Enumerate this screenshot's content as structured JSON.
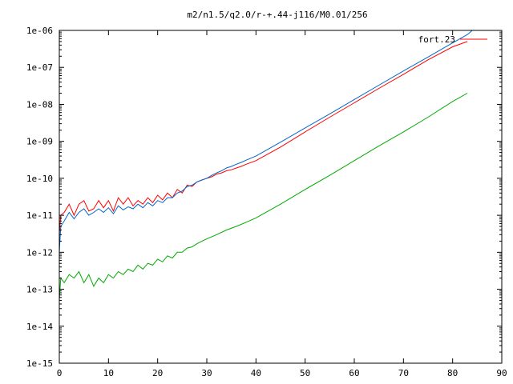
{
  "chart_data": {
    "type": "line",
    "title": "m2/n1.5/q2.0/r-+.44-j116/M0.01/256",
    "xlabel": "",
    "ylabel": "",
    "xlim": [
      0,
      90
    ],
    "ylim": [
      1e-15,
      1e-06
    ],
    "yscale": "log",
    "grid": false,
    "legend_position": "top-right",
    "x_ticks": [
      0,
      10,
      20,
      30,
      40,
      50,
      60,
      70,
      80,
      90
    ],
    "x_tick_labels": [
      "0",
      "10",
      "20",
      "30",
      "40",
      "50",
      "60",
      "70",
      "80",
      "90"
    ],
    "y_ticks": [
      1e-15,
      1e-14,
      1e-13,
      1e-12,
      1e-11,
      1e-10,
      1e-09,
      1e-08,
      1e-07,
      1e-06
    ],
    "y_tick_labels": [
      "1e-15",
      "1e-14",
      "1e-13",
      "1e-12",
      "1e-11",
      "1e-10",
      "1e-09",
      "1e-08",
      "1e-07",
      "1e-06"
    ],
    "series": [
      {
        "name": "fort.23",
        "color": "#ff0000",
        "x": [
          0,
          0.3,
          1,
          2,
          3,
          4,
          5,
          6,
          7,
          8,
          9,
          10,
          11,
          12,
          13,
          14,
          15,
          16,
          17,
          18,
          19,
          20,
          21,
          22,
          23,
          24,
          25,
          26,
          27,
          28,
          29,
          30,
          31,
          32,
          33,
          34,
          35,
          36,
          37,
          38,
          40,
          45,
          50,
          55,
          60,
          65,
          70,
          75,
          80,
          83
        ],
        "y": [
          3e-12,
          1e-11,
          1.2e-11,
          2e-11,
          1e-11,
          2e-11,
          2.5e-11,
          1.3e-11,
          1.5e-11,
          2.5e-11,
          1.6e-11,
          2.5e-11,
          1.3e-11,
          3e-11,
          2e-11,
          3e-11,
          1.8e-11,
          2.5e-11,
          2e-11,
          3e-11,
          2.2e-11,
          3.5e-11,
          2.6e-11,
          4e-11,
          3e-11,
          5e-11,
          4e-11,
          6.5e-11,
          6e-11,
          8e-11,
          9e-11,
          1e-10,
          1.1e-10,
          1.3e-10,
          1.4e-10,
          1.6e-10,
          1.7e-10,
          1.9e-10,
          2.1e-10,
          2.4e-10,
          3e-10,
          7e-10,
          1.8e-09,
          4.5e-09,
          1.1e-08,
          2.7e-08,
          6.5e-08,
          1.6e-07,
          3.6e-07,
          5e-07
        ]
      },
      {
        "name": "",
        "color": "#0066cc",
        "x": [
          0,
          0.3,
          1,
          2,
          3,
          4,
          5,
          6,
          7,
          8,
          9,
          10,
          11,
          12,
          13,
          14,
          15,
          16,
          17,
          18,
          19,
          20,
          21,
          22,
          23,
          24,
          25,
          26,
          27,
          28,
          29,
          30,
          31,
          32,
          33,
          34,
          35,
          36,
          37,
          38,
          40,
          45,
          50,
          55,
          60,
          65,
          70,
          75,
          80,
          83,
          84
        ],
        "y": [
          1e-12,
          5e-12,
          7e-12,
          1.2e-11,
          8e-12,
          1.2e-11,
          1.5e-11,
          1e-11,
          1.2e-11,
          1.5e-11,
          1.2e-11,
          1.6e-11,
          1.1e-11,
          1.8e-11,
          1.4e-11,
          1.7e-11,
          1.5e-11,
          2e-11,
          1.6e-11,
          2.2e-11,
          1.8e-11,
          2.5e-11,
          2.2e-11,
          3e-11,
          3e-11,
          4e-11,
          4.5e-11,
          6e-11,
          6.5e-11,
          8e-11,
          9e-11,
          1e-10,
          1.2e-10,
          1.4e-10,
          1.6e-10,
          1.9e-10,
          2.1e-10,
          2.4e-10,
          2.7e-10,
          3.1e-10,
          4e-10,
          9.5e-10,
          2.3e-09,
          5.5e-09,
          1.35e-08,
          3.3e-08,
          8e-08,
          1.9e-07,
          4.6e-07,
          7.7e-07,
          1e-06
        ]
      },
      {
        "name": "",
        "color": "#00aa00",
        "x": [
          0,
          0.3,
          1,
          2,
          3,
          4,
          5,
          6,
          7,
          8,
          9,
          10,
          11,
          12,
          13,
          14,
          15,
          16,
          17,
          18,
          19,
          20,
          21,
          22,
          23,
          24,
          25,
          26,
          27,
          28,
          29,
          30,
          32,
          34,
          36,
          38,
          40,
          45,
          50,
          55,
          60,
          65,
          70,
          75,
          80,
          83
        ],
        "y": [
          5e-14,
          2e-13,
          1.5e-13,
          2.5e-13,
          2e-13,
          3e-13,
          1.5e-13,
          2.5e-13,
          1.2e-13,
          2e-13,
          1.5e-13,
          2.5e-13,
          2e-13,
          3e-13,
          2.5e-13,
          3.5e-13,
          3e-13,
          4.5e-13,
          3.5e-13,
          5e-13,
          4.5e-13,
          6.5e-13,
          5.5e-13,
          8e-13,
          7e-13,
          1e-12,
          1e-12,
          1.3e-12,
          1.4e-12,
          1.7e-12,
          2e-12,
          2.3e-12,
          3e-12,
          4e-12,
          5e-12,
          6.5e-12,
          8.5e-12,
          2e-11,
          5e-11,
          1.2e-10,
          3e-10,
          7.5e-10,
          1.8e-09,
          4.5e-09,
          1.2e-08,
          2e-08
        ]
      }
    ]
  }
}
